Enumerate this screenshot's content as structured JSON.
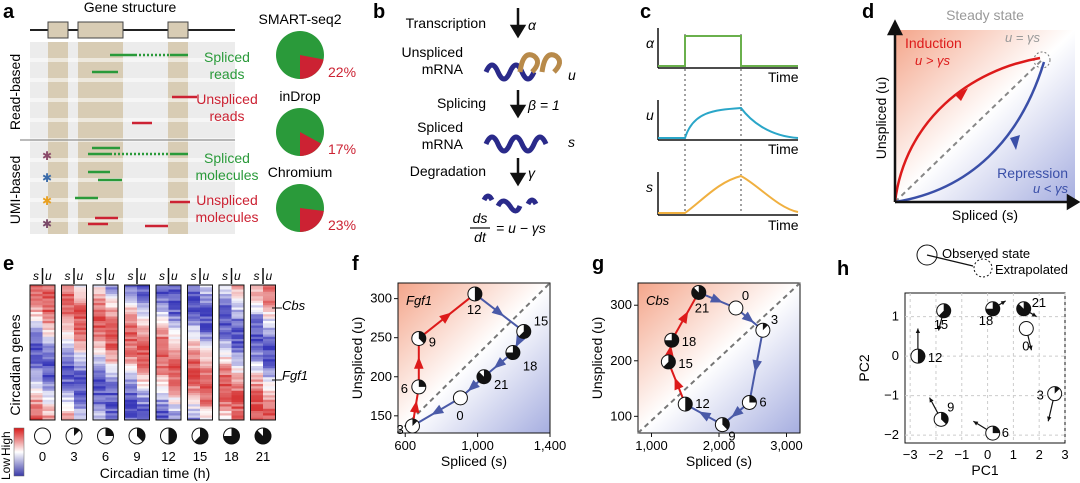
{
  "panels": {
    "a": {
      "label": "a",
      "gene_structure": "Gene structure",
      "read_based": "Read-based",
      "umi_based": "UMI-based",
      "spliced_reads": [
        "Spliced",
        "reads"
      ],
      "unspliced_reads": [
        "Unspliced",
        "reads"
      ],
      "spliced_molecules": [
        "Spliced",
        "molecules"
      ],
      "unspliced_molecules": [
        "Unspliced",
        "molecules"
      ],
      "protocols": [
        {
          "name": "SMART-seq2",
          "unspliced_pct": 22,
          "label": "22%"
        },
        {
          "name": "inDrop",
          "unspliced_pct": 17,
          "label": "17%"
        },
        {
          "name": "Chromium",
          "unspliced_pct": 23,
          "label": "23%"
        }
      ],
      "colors": {
        "spliced": "#2a9a3a",
        "unspliced": "#cc2233",
        "exon": "#d8ccb4"
      }
    },
    "b": {
      "label": "b",
      "transcription": "Transcription",
      "alpha": "α",
      "unspliced_mrna": [
        "Unspliced",
        "mRNA"
      ],
      "u": "u",
      "splicing": "Splicing",
      "beta": "β = 1",
      "spliced_mrna": [
        "Spliced",
        "mRNA"
      ],
      "s": "s",
      "degradation": "Degradation",
      "gamma": "γ",
      "eq_num": "ds",
      "eq_den": "dt",
      "eq_rhs": "= u − γs"
    },
    "c": {
      "label": "c",
      "alpha": "α",
      "u": "u",
      "s": "s",
      "time": "Time",
      "colors": {
        "alpha": "#6ab04c",
        "u": "#2aa6c8",
        "s": "#f0b040"
      }
    },
    "d": {
      "label": "d",
      "steady_state": "Steady state",
      "steady_eq": "u = γs",
      "induction": "Induction",
      "induction_eq": "u > γs",
      "repression": "Repression",
      "repression_eq": "u < γs",
      "xlabel": "Spliced (s)",
      "ylabel": "Unspliced (u)"
    },
    "e": {
      "label": "e",
      "su": [
        "s",
        "u"
      ],
      "genes_label": "Circadian genes",
      "cbs": "Cbs",
      "fgf1": "Fgf1",
      "legend_low": "Low",
      "legend_high": "High",
      "times": [
        "0",
        "3",
        "6",
        "9",
        "12",
        "15",
        "18",
        "21"
      ],
      "xlabel": "Circadian time (h)"
    }
  },
  "chart_data": [
    {
      "panel": "f",
      "type": "scatter",
      "title": "Fgf1",
      "xlabel": "Spliced (s)",
      "ylabel": "Unspliced (u)",
      "xlim": [
        560,
        1400
      ],
      "ylim": [
        128,
        320
      ],
      "xticks": [
        "600",
        "1,000",
        "1,400"
      ],
      "xtick_values": [
        600,
        1000,
        1400
      ],
      "yticks": [
        "150",
        "200",
        "250",
        "300"
      ],
      "ytick_values": [
        150,
        200,
        250,
        300
      ],
      "points": [
        {
          "label": "0",
          "x": 905,
          "y": 173
        },
        {
          "label": "3",
          "x": 640,
          "y": 137
        },
        {
          "label": "6",
          "x": 675,
          "y": 187
        },
        {
          "label": "9",
          "x": 675,
          "y": 249
        },
        {
          "label": "12",
          "x": 985,
          "y": 306
        },
        {
          "label": "15",
          "x": 1255,
          "y": 258
        },
        {
          "label": "18",
          "x": 1195,
          "y": 231
        },
        {
          "label": "21",
          "x": 1035,
          "y": 200
        }
      ]
    },
    {
      "panel": "g",
      "type": "scatter",
      "title": "Cbs",
      "xlabel": "Spliced (s)",
      "ylabel": "Unspliced (u)",
      "xlim": [
        800,
        3200
      ],
      "ylim": [
        70,
        340
      ],
      "xticks": [
        "1,000",
        "2,000",
        "3,000"
      ],
      "xtick_values": [
        1000,
        2000,
        3000
      ],
      "yticks": [
        "100",
        "200",
        "300"
      ],
      "ytick_values": [
        100,
        200,
        300
      ],
      "points": [
        {
          "label": "0",
          "x": 2250,
          "y": 295
        },
        {
          "label": "3",
          "x": 2650,
          "y": 255
        },
        {
          "label": "6",
          "x": 2450,
          "y": 125
        },
        {
          "label": "9",
          "x": 2050,
          "y": 85
        },
        {
          "label": "12",
          "x": 1500,
          "y": 122
        },
        {
          "label": "15",
          "x": 1250,
          "y": 198
        },
        {
          "label": "18",
          "x": 1300,
          "y": 237
        },
        {
          "label": "21",
          "x": 1700,
          "y": 323
        }
      ]
    },
    {
      "panel": "h",
      "type": "scatter",
      "title": "",
      "xlabel": "PC1",
      "ylabel": "PC2",
      "xlim": [
        -3.2,
        3.0
      ],
      "ylim": [
        -2.2,
        1.6
      ],
      "xticks": [
        "−3",
        "−2",
        "−1",
        "0",
        "1",
        "2",
        "3"
      ],
      "xtick_values": [
        -3,
        -2,
        -1,
        0,
        1,
        2,
        3
      ],
      "yticks": [
        "−2",
        "−1",
        "0",
        "1"
      ],
      "ytick_values": [
        -2,
        -1,
        0,
        1
      ],
      "legend": {
        "observed": "Observed state",
        "extrapolated": "Extrapolated"
      },
      "points": [
        {
          "label": "0",
          "x": 1.5,
          "y": 0.7,
          "dx": 0.2,
          "dy": -0.55
        },
        {
          "label": "3",
          "x": 2.6,
          "y": -0.95,
          "dx": -0.25,
          "dy": -0.7
        },
        {
          "label": "6",
          "x": 0.2,
          "y": -1.95,
          "dx": -0.75,
          "dy": 0.3
        },
        {
          "label": "9",
          "x": -1.8,
          "y": -1.6,
          "dx": -0.45,
          "dy": 0.55
        },
        {
          "label": "12",
          "x": -2.7,
          "y": 0.0,
          "dx": 0.0,
          "dy": 0.7
        },
        {
          "label": "15",
          "x": -1.7,
          "y": 1.15,
          "dx": -0.2,
          "dy": -0.5
        },
        {
          "label": "18",
          "x": 0.2,
          "y": 1.2,
          "dx": 0.5,
          "dy": 0.2
        },
        {
          "label": "21",
          "x": 1.4,
          "y": 1.2,
          "dx": 0.5,
          "dy": -0.2
        }
      ]
    }
  ]
}
